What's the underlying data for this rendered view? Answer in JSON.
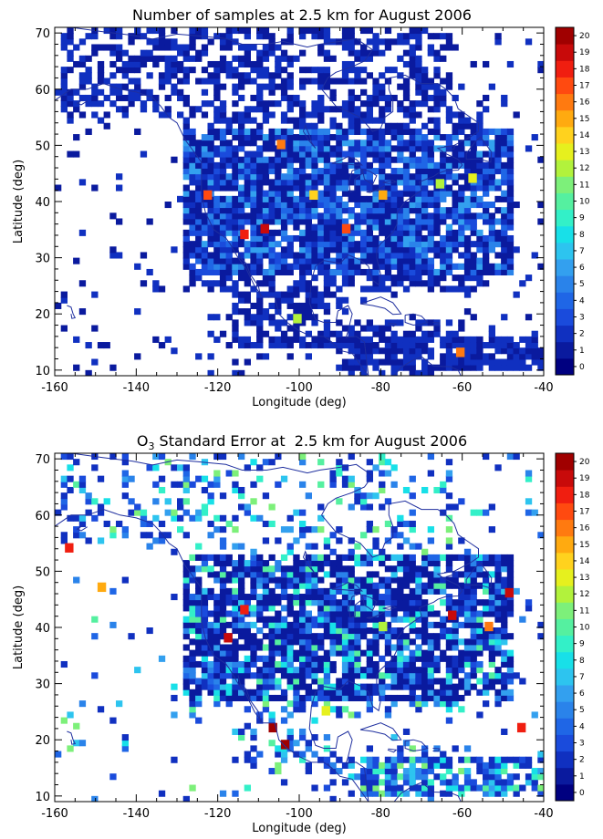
{
  "chart_data": [
    {
      "type": "heatmap",
      "title": "Number of samples at  2.5 km for August 2006",
      "xlabel": "Longitude (deg)",
      "ylabel": "Latitude (deg)",
      "xlim": [
        -160,
        -40
      ],
      "ylim": [
        9,
        71
      ],
      "xticks": [
        "-160",
        "-140",
        "-120",
        "-100",
        "-80",
        "-60",
        "-40"
      ],
      "xtick_values": [
        -160,
        -140,
        -120,
        -100,
        -80,
        -60,
        -40
      ],
      "yticks": [
        "10",
        "20",
        "30",
        "40",
        "50",
        "60",
        "70"
      ],
      "ytick_values": [
        10,
        20,
        30,
        40,
        50,
        60,
        70
      ],
      "colorbar": {
        "labels": [
          "0",
          "1",
          "2",
          "3",
          "4",
          "5",
          "6",
          "7",
          "8",
          "9",
          "10",
          "11",
          "12",
          "13",
          "14",
          "15",
          "16",
          "17",
          "18",
          "19",
          "20"
        ],
        "colors": [
          "#000080",
          "#0a1a9e",
          "#1030c0",
          "#1a4bdc",
          "#1f66e6",
          "#2a83ea",
          "#33a0ef",
          "#2dc4ef",
          "#18e0e8",
          "#33f0c8",
          "#55f0a0",
          "#7df07a",
          "#b2f23c",
          "#e6f01e",
          "#ffd21e",
          "#ffaa10",
          "#ff7a10",
          "#ff4a10",
          "#f01e10",
          "#c80a0a",
          "#a00000"
        ]
      },
      "hotspots": [
        {
          "lon": -108,
          "lat": 35,
          "value": 19
        },
        {
          "lon": -113,
          "lat": 34,
          "value": 18
        },
        {
          "lon": -122,
          "lat": 41,
          "value": 17
        },
        {
          "lon": -88,
          "lat": 35,
          "value": 17
        },
        {
          "lon": -104,
          "lat": 50,
          "value": 16
        },
        {
          "lon": -79,
          "lat": 41,
          "value": 15
        },
        {
          "lon": -96,
          "lat": 41,
          "value": 14
        },
        {
          "lon": -60,
          "lat": 13,
          "value": 16
        },
        {
          "lon": -57,
          "lat": 44,
          "value": 13
        },
        {
          "lon": -65,
          "lat": 43,
          "value": 12
        },
        {
          "lon": -100,
          "lat": 19,
          "value": 12
        }
      ]
    },
    {
      "type": "heatmap",
      "title_prefix": "O",
      "title_sub": "3",
      "title_rest": " Standard Error at  2.5 km for August 2006",
      "xlabel": "Longitude (deg)",
      "ylabel": "Latitude (deg)",
      "xlim": [
        -160,
        -40
      ],
      "ylim": [
        9,
        71
      ],
      "xticks": [
        "-160",
        "-140",
        "-120",
        "-100",
        "-80",
        "-60",
        "-40"
      ],
      "xtick_values": [
        -160,
        -140,
        -120,
        -100,
        -80,
        -60,
        -40
      ],
      "yticks": [
        "10",
        "20",
        "30",
        "40",
        "50",
        "60",
        "70"
      ],
      "ytick_values": [
        10,
        20,
        30,
        40,
        50,
        60,
        70
      ],
      "colorbar": {
        "labels": [
          "0",
          "1",
          "2",
          "3",
          "4",
          "5",
          "6",
          "7",
          "8",
          "9",
          "10",
          "11",
          "12",
          "13",
          "14",
          "15",
          "16",
          "17",
          "18",
          "19",
          "20"
        ],
        "colors": [
          "#000080",
          "#0a1a9e",
          "#1030c0",
          "#1a4bdc",
          "#1f66e6",
          "#2a83ea",
          "#33a0ef",
          "#2dc4ef",
          "#18e0e8",
          "#33f0c8",
          "#55f0a0",
          "#7df07a",
          "#b2f23c",
          "#e6f01e",
          "#ffd21e",
          "#ffaa10",
          "#ff7a10",
          "#ff4a10",
          "#f01e10",
          "#c80a0a",
          "#a00000"
        ]
      },
      "hotspots": [
        {
          "lon": -103,
          "lat": 19,
          "value": 20
        },
        {
          "lon": -106,
          "lat": 22,
          "value": 20
        },
        {
          "lon": -156,
          "lat": 54,
          "value": 18
        },
        {
          "lon": -117,
          "lat": 38,
          "value": 19
        },
        {
          "lon": -113,
          "lat": 43,
          "value": 18
        },
        {
          "lon": -62,
          "lat": 42,
          "value": 19
        },
        {
          "lon": -48,
          "lat": 46,
          "value": 19
        },
        {
          "lon": -45,
          "lat": 22,
          "value": 18
        },
        {
          "lon": -93,
          "lat": 25,
          "value": 13
        },
        {
          "lon": -148,
          "lat": 47,
          "value": 15
        },
        {
          "lon": -53,
          "lat": 40,
          "value": 16
        },
        {
          "lon": -79,
          "lat": 40,
          "value": 12
        }
      ]
    }
  ]
}
